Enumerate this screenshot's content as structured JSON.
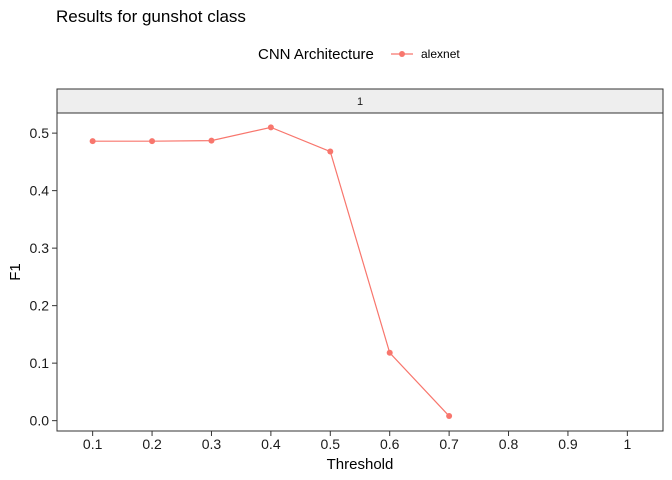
{
  "chart_data": {
    "type": "line",
    "title": "Results for gunshot class",
    "legend": {
      "title": "CNN Architecture",
      "position": "top"
    },
    "facet_label": "1",
    "xlabel": "Threshold",
    "ylabel": "F1",
    "x_ticks": [
      "0.1",
      "0.2",
      "0.3",
      "0.4",
      "0.5",
      "0.6",
      "0.7",
      "0.8",
      "0.9",
      "1"
    ],
    "y_ticks": [
      "0.0",
      "0.1",
      "0.2",
      "0.3",
      "0.4",
      "0.5"
    ],
    "xlim": [
      0.04,
      1.06
    ],
    "ylim": [
      -0.018,
      0.535
    ],
    "grid": false,
    "series": [
      {
        "name": "alexnet",
        "color": "#F8766D",
        "x": [
          0.1,
          0.2,
          0.3,
          0.4,
          0.5,
          0.6,
          0.7
        ],
        "y": [
          0.486,
          0.486,
          0.487,
          0.51,
          0.468,
          0.118,
          0.008
        ]
      }
    ]
  }
}
